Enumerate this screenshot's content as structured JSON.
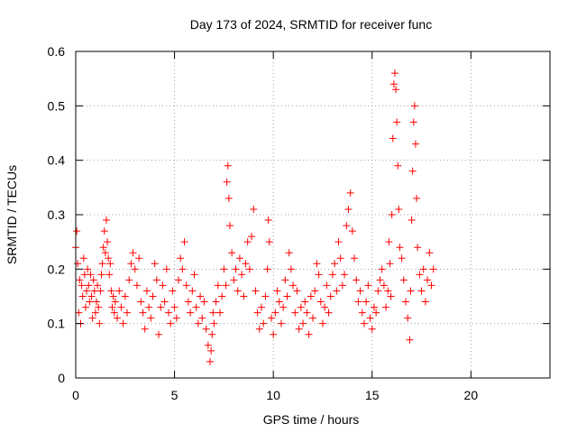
{
  "chart_data": {
    "type": "scatter",
    "title": "Day 173 of 2024, SRMTID for receiver func",
    "xlabel": "GPS time / hours",
    "ylabel": "SRMTID / TECUs",
    "xlim": [
      0,
      24
    ],
    "ylim": [
      0,
      0.6
    ],
    "x_ticks": [
      0,
      5,
      10,
      15,
      20
    ],
    "x_tick_labels": [
      "0",
      "5",
      "10",
      "15",
      "20"
    ],
    "y_ticks": [
      0,
      0.1,
      0.2,
      0.3,
      0.4,
      0.5,
      0.6
    ],
    "y_tick_labels": [
      "0",
      "0.1",
      "0.2",
      "0.3",
      "0.4",
      "0.5",
      "0.6"
    ],
    "grid": true,
    "marker": "+",
    "series": [
      {
        "name": "SRMTID",
        "color": "#ff0000",
        "points": [
          [
            0.0,
            0.24
          ],
          [
            0.05,
            0.27
          ],
          [
            0.1,
            0.21
          ],
          [
            0.15,
            0.12
          ],
          [
            0.2,
            0.18
          ],
          [
            0.25,
            0.1
          ],
          [
            0.3,
            0.17
          ],
          [
            0.35,
            0.15
          ],
          [
            0.4,
            0.22
          ],
          [
            0.45,
            0.19
          ],
          [
            0.5,
            0.13
          ],
          [
            0.55,
            0.16
          ],
          [
            0.6,
            0.2
          ],
          [
            0.65,
            0.17
          ],
          [
            0.7,
            0.14
          ],
          [
            0.75,
            0.19
          ],
          [
            0.8,
            0.15
          ],
          [
            0.85,
            0.11
          ],
          [
            0.9,
            0.18
          ],
          [
            0.95,
            0.16
          ],
          [
            1.0,
            0.12
          ],
          [
            1.05,
            0.14
          ],
          [
            1.1,
            0.17
          ],
          [
            1.15,
            0.13
          ],
          [
            1.2,
            0.1
          ],
          [
            1.25,
            0.16
          ],
          [
            1.3,
            0.19
          ],
          [
            1.35,
            0.21
          ],
          [
            1.4,
            0.24
          ],
          [
            1.45,
            0.27
          ],
          [
            1.5,
            0.23
          ],
          [
            1.55,
            0.29
          ],
          [
            1.6,
            0.25
          ],
          [
            1.65,
            0.22
          ],
          [
            1.7,
            0.19
          ],
          [
            1.75,
            0.21
          ],
          [
            1.8,
            0.16
          ],
          [
            1.85,
            0.13
          ],
          [
            1.9,
            0.15
          ],
          [
            1.95,
            0.12
          ],
          [
            2.0,
            0.14
          ],
          [
            2.1,
            0.11
          ],
          [
            2.2,
            0.16
          ],
          [
            2.3,
            0.13
          ],
          [
            2.4,
            0.1
          ],
          [
            2.5,
            0.15
          ],
          [
            2.6,
            0.12
          ],
          [
            2.7,
            0.18
          ],
          [
            2.8,
            0.21
          ],
          [
            2.9,
            0.23
          ],
          [
            3.0,
            0.2
          ],
          [
            3.1,
            0.17
          ],
          [
            3.2,
            0.22
          ],
          [
            3.3,
            0.14
          ],
          [
            3.4,
            0.12
          ],
          [
            3.5,
            0.09
          ],
          [
            3.6,
            0.16
          ],
          [
            3.7,
            0.13
          ],
          [
            3.8,
            0.11
          ],
          [
            3.9,
            0.15
          ],
          [
            4.0,
            0.21
          ],
          [
            4.1,
            0.18
          ],
          [
            4.2,
            0.08
          ],
          [
            4.3,
            0.13
          ],
          [
            4.4,
            0.17
          ],
          [
            4.5,
            0.14
          ],
          [
            4.6,
            0.2
          ],
          [
            4.7,
            0.12
          ],
          [
            4.8,
            0.1
          ],
          [
            4.9,
            0.16
          ],
          [
            5.0,
            0.13
          ],
          [
            5.1,
            0.11
          ],
          [
            5.2,
            0.18
          ],
          [
            5.3,
            0.22
          ],
          [
            5.4,
            0.2
          ],
          [
            5.5,
            0.25
          ],
          [
            5.6,
            0.17
          ],
          [
            5.7,
            0.14
          ],
          [
            5.8,
            0.12
          ],
          [
            5.9,
            0.16
          ],
          [
            6.0,
            0.19
          ],
          [
            6.1,
            0.13
          ],
          [
            6.2,
            0.1
          ],
          [
            6.3,
            0.15
          ],
          [
            6.4,
            0.11
          ],
          [
            6.5,
            0.14
          ],
          [
            6.6,
            0.09
          ],
          [
            6.7,
            0.06
          ],
          [
            6.8,
            0.03
          ],
          [
            6.85,
            0.05
          ],
          [
            6.9,
            0.08
          ],
          [
            6.95,
            0.12
          ],
          [
            7.0,
            0.1
          ],
          [
            7.1,
            0.14
          ],
          [
            7.2,
            0.17
          ],
          [
            7.3,
            0.12
          ],
          [
            7.4,
            0.15
          ],
          [
            7.5,
            0.2
          ],
          [
            7.6,
            0.17
          ],
          [
            7.65,
            0.36
          ],
          [
            7.7,
            0.39
          ],
          [
            7.75,
            0.33
          ],
          [
            7.8,
            0.28
          ],
          [
            7.9,
            0.23
          ],
          [
            8.0,
            0.18
          ],
          [
            8.1,
            0.2
          ],
          [
            8.2,
            0.16
          ],
          [
            8.3,
            0.22
          ],
          [
            8.4,
            0.19
          ],
          [
            8.5,
            0.15
          ],
          [
            8.6,
            0.21
          ],
          [
            8.7,
            0.25
          ],
          [
            8.8,
            0.2
          ],
          [
            8.9,
            0.26
          ],
          [
            9.0,
            0.31
          ],
          [
            9.1,
            0.16
          ],
          [
            9.2,
            0.12
          ],
          [
            9.3,
            0.09
          ],
          [
            9.4,
            0.13
          ],
          [
            9.5,
            0.1
          ],
          [
            9.6,
            0.15
          ],
          [
            9.7,
            0.2
          ],
          [
            9.75,
            0.29
          ],
          [
            9.8,
            0.25
          ],
          [
            9.9,
            0.11
          ],
          [
            10.0,
            0.08
          ],
          [
            10.1,
            0.12
          ],
          [
            10.2,
            0.16
          ],
          [
            10.3,
            0.14
          ],
          [
            10.4,
            0.1
          ],
          [
            10.5,
            0.13
          ],
          [
            10.6,
            0.18
          ],
          [
            10.7,
            0.15
          ],
          [
            10.8,
            0.23
          ],
          [
            10.9,
            0.2
          ],
          [
            11.0,
            0.17
          ],
          [
            11.1,
            0.12
          ],
          [
            11.2,
            0.16
          ],
          [
            11.3,
            0.09
          ],
          [
            11.4,
            0.13
          ],
          [
            11.5,
            0.1
          ],
          [
            11.6,
            0.14
          ],
          [
            11.7,
            0.12
          ],
          [
            11.8,
            0.08
          ],
          [
            11.9,
            0.15
          ],
          [
            12.0,
            0.11
          ],
          [
            12.1,
            0.16
          ],
          [
            12.2,
            0.21
          ],
          [
            12.3,
            0.19
          ],
          [
            12.4,
            0.14
          ],
          [
            12.5,
            0.1
          ],
          [
            12.6,
            0.13
          ],
          [
            12.7,
            0.17
          ],
          [
            12.8,
            0.12
          ],
          [
            12.9,
            0.15
          ],
          [
            13.0,
            0.19
          ],
          [
            13.1,
            0.21
          ],
          [
            13.2,
            0.16
          ],
          [
            13.3,
            0.25
          ],
          [
            13.4,
            0.22
          ],
          [
            13.5,
            0.17
          ],
          [
            13.6,
            0.19
          ],
          [
            13.7,
            0.28
          ],
          [
            13.8,
            0.31
          ],
          [
            13.9,
            0.34
          ],
          [
            14.0,
            0.27
          ],
          [
            14.1,
            0.22
          ],
          [
            14.2,
            0.18
          ],
          [
            14.3,
            0.14
          ],
          [
            14.4,
            0.16
          ],
          [
            14.5,
            0.12
          ],
          [
            14.6,
            0.1
          ],
          [
            14.7,
            0.14
          ],
          [
            14.8,
            0.17
          ],
          [
            14.9,
            0.11
          ],
          [
            15.0,
            0.09
          ],
          [
            15.1,
            0.13
          ],
          [
            15.2,
            0.12
          ],
          [
            15.3,
            0.16
          ],
          [
            15.4,
            0.18
          ],
          [
            15.5,
            0.2
          ],
          [
            15.6,
            0.17
          ],
          [
            15.7,
            0.13
          ],
          [
            15.8,
            0.16
          ],
          [
            15.85,
            0.25
          ],
          [
            15.9,
            0.21
          ],
          [
            15.95,
            0.15
          ],
          [
            16.0,
            0.3
          ],
          [
            16.05,
            0.44
          ],
          [
            16.1,
            0.54
          ],
          [
            16.15,
            0.56
          ],
          [
            16.2,
            0.53
          ],
          [
            16.25,
            0.47
          ],
          [
            16.3,
            0.39
          ],
          [
            16.35,
            0.31
          ],
          [
            16.4,
            0.24
          ],
          [
            16.5,
            0.22
          ],
          [
            16.6,
            0.18
          ],
          [
            16.7,
            0.14
          ],
          [
            16.8,
            0.11
          ],
          [
            16.9,
            0.07
          ],
          [
            16.95,
            0.16
          ],
          [
            17.0,
            0.29
          ],
          [
            17.05,
            0.38
          ],
          [
            17.1,
            0.47
          ],
          [
            17.15,
            0.5
          ],
          [
            17.2,
            0.43
          ],
          [
            17.25,
            0.33
          ],
          [
            17.3,
            0.24
          ],
          [
            17.4,
            0.19
          ],
          [
            17.5,
            0.16
          ],
          [
            17.6,
            0.2
          ],
          [
            17.7,
            0.14
          ],
          [
            17.8,
            0.18
          ],
          [
            17.9,
            0.23
          ],
          [
            18.0,
            0.17
          ],
          [
            18.1,
            0.2
          ]
        ]
      }
    ]
  }
}
